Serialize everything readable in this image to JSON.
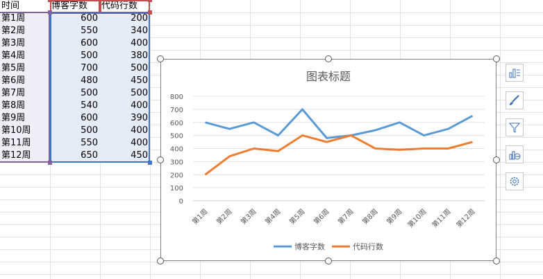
{
  "table": {
    "headers": [
      "时间",
      "博客字数",
      "代码行数"
    ],
    "rows": [
      [
        "第1周",
        "600",
        "200"
      ],
      [
        "第2周",
        "550",
        "340"
      ],
      [
        "第3周",
        "600",
        "400"
      ],
      [
        "第4周",
        "500",
        "380"
      ],
      [
        "第5周",
        "700",
        "500"
      ],
      [
        "第6周",
        "480",
        "450"
      ],
      [
        "第7周",
        "500",
        "500"
      ],
      [
        "第8周",
        "540",
        "400"
      ],
      [
        "第9周",
        "600",
        "390"
      ],
      [
        "第10周",
        "500",
        "400"
      ],
      [
        "第11周",
        "550",
        "400"
      ],
      [
        "第12周",
        "650",
        "450"
      ]
    ]
  },
  "chart_data": {
    "type": "line",
    "title": "图表标题",
    "categories": [
      "第1周",
      "第2周",
      "第3周",
      "第4周",
      "第5周",
      "第6周",
      "第7周",
      "第8周",
      "第9周",
      "第10周",
      "第11周",
      "第12周"
    ],
    "series": [
      {
        "name": "博客字数",
        "color": "#5b9bd5",
        "values": [
          600,
          550,
          600,
          500,
          700,
          480,
          500,
          540,
          600,
          500,
          550,
          650
        ]
      },
      {
        "name": "代码行数",
        "color": "#ed7d31",
        "values": [
          200,
          340,
          400,
          380,
          500,
          450,
          500,
          400,
          390,
          400,
          400,
          450
        ]
      }
    ],
    "ylim": [
      0,
      800
    ],
    "yticks": [
      0,
      100,
      200,
      300,
      400,
      500,
      600,
      700,
      800
    ],
    "grid": true,
    "legend": "bottom"
  },
  "side_buttons": [
    "chart-elements-icon",
    "chart-styles-icon",
    "chart-filters-icon",
    "chart-layout-icon",
    "chart-settings-icon"
  ],
  "colors": {
    "gridline": "#e2e2e2",
    "sel_time": "#8064a2",
    "sel_blog": "#c0504d",
    "sel_code": "#4472c4",
    "fill_time": "#f2eef7",
    "fill_data": "#e6ecf7"
  }
}
